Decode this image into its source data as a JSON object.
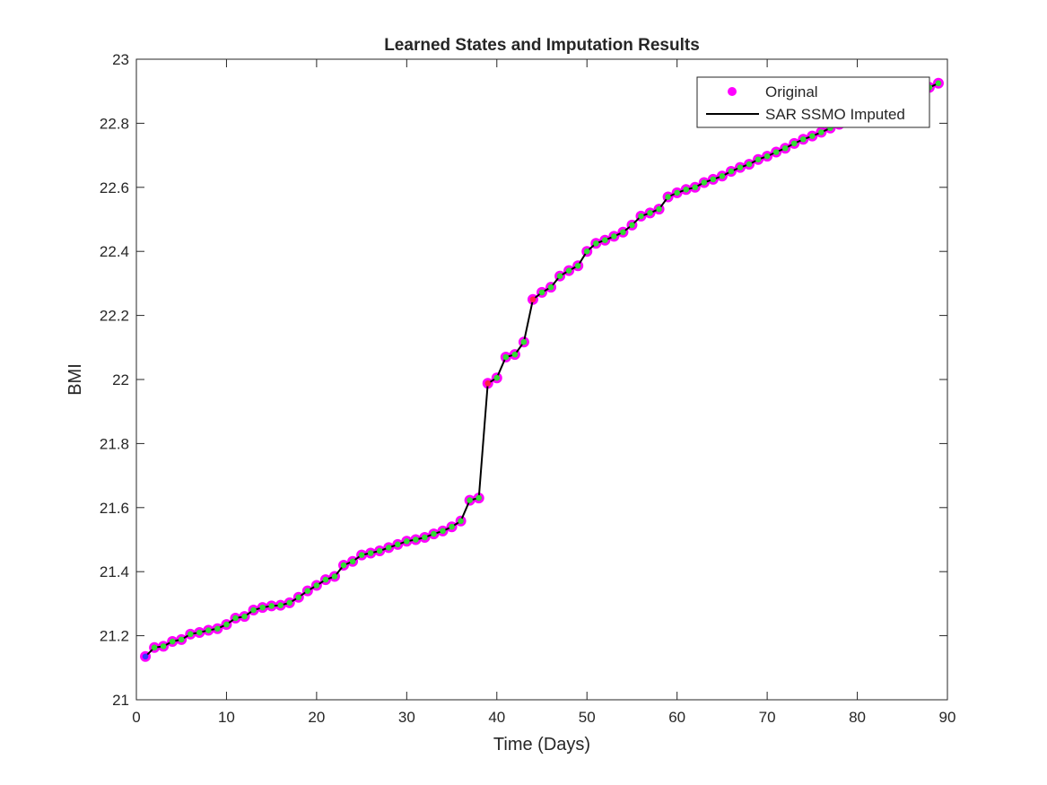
{
  "chart_data": {
    "type": "line",
    "title": "Learned States and Imputation Results",
    "xlabel": "Time (Days)",
    "ylabel": "BMI",
    "xlim": [
      0,
      90
    ],
    "ylim": [
      21,
      23
    ],
    "xticks": [
      0,
      10,
      20,
      30,
      40,
      50,
      60,
      70,
      80,
      90
    ],
    "yticks": [
      21,
      21.2,
      21.4,
      21.6,
      21.8,
      22,
      22.2,
      22.4,
      22.6,
      22.8,
      23
    ],
    "grid": false,
    "legend_position": "top-right",
    "legend": [
      {
        "label": "Original",
        "marker": "circle",
        "color": "#ff00ff"
      },
      {
        "label": "SAR SSMO Imputed",
        "marker": "line",
        "color": "#000000"
      }
    ],
    "colors": {
      "original": "#ff00ff",
      "imputed_line": "#000000",
      "state_green": "#33dd33",
      "state_blue": "#3333ff",
      "state_red": "#ff2244"
    },
    "x": [
      1,
      2,
      3,
      4,
      5,
      6,
      7,
      8,
      9,
      10,
      11,
      12,
      13,
      14,
      15,
      16,
      17,
      18,
      19,
      20,
      21,
      22,
      23,
      24,
      25,
      26,
      27,
      28,
      29,
      30,
      31,
      32,
      33,
      34,
      35,
      36,
      37,
      38,
      39,
      40,
      41,
      42,
      43,
      44,
      45,
      46,
      47,
      48,
      49,
      50,
      51,
      52,
      53,
      54,
      55,
      56,
      57,
      58,
      59,
      60,
      61,
      62,
      63,
      64,
      65,
      66,
      67,
      68,
      69,
      70,
      71,
      72,
      73,
      74,
      75,
      76,
      77,
      78,
      79,
      80,
      81,
      82,
      83,
      84,
      85,
      86,
      87,
      88,
      89
    ],
    "series": [
      {
        "name": "Original",
        "values": [
          21.135,
          21.163,
          21.167,
          21.182,
          21.188,
          21.205,
          21.21,
          21.217,
          21.222,
          21.235,
          21.255,
          21.26,
          21.28,
          21.288,
          21.293,
          21.295,
          21.303,
          21.32,
          21.34,
          21.357,
          21.375,
          21.385,
          21.42,
          21.432,
          21.452,
          21.458,
          21.465,
          21.475,
          21.485,
          21.495,
          21.5,
          21.507,
          21.518,
          21.527,
          21.54,
          21.558,
          21.623,
          21.63,
          21.988,
          22.005,
          22.07,
          22.078,
          22.117,
          22.25,
          22.272,
          22.288,
          22.323,
          22.34,
          22.355,
          22.4,
          22.425,
          22.435,
          22.447,
          22.46,
          22.482,
          22.51,
          22.52,
          22.532,
          22.57,
          22.583,
          22.593,
          22.6,
          22.615,
          22.625,
          22.635,
          22.65,
          22.662,
          22.672,
          22.687,
          22.697,
          22.71,
          22.722,
          22.737,
          22.75,
          22.76,
          22.772,
          22.785,
          22.797,
          22.807,
          22.818,
          22.83,
          22.84,
          22.852,
          22.862,
          22.875,
          22.887,
          22.9,
          22.912,
          22.925
        ]
      },
      {
        "name": "SAR SSMO Imputed",
        "values": [
          21.135,
          21.163,
          21.167,
          21.182,
          21.188,
          21.205,
          21.21,
          21.217,
          21.222,
          21.235,
          21.255,
          21.26,
          21.28,
          21.288,
          21.293,
          21.295,
          21.303,
          21.32,
          21.34,
          21.357,
          21.375,
          21.385,
          21.42,
          21.432,
          21.452,
          21.458,
          21.465,
          21.475,
          21.485,
          21.495,
          21.5,
          21.507,
          21.518,
          21.527,
          21.54,
          21.558,
          21.623,
          21.63,
          21.988,
          22.005,
          22.07,
          22.078,
          22.117,
          22.25,
          22.272,
          22.288,
          22.323,
          22.34,
          22.355,
          22.4,
          22.425,
          22.435,
          22.447,
          22.46,
          22.482,
          22.51,
          22.52,
          22.532,
          22.57,
          22.583,
          22.593,
          22.6,
          22.615,
          22.625,
          22.635,
          22.65,
          22.662,
          22.672,
          22.687,
          22.697,
          22.71,
          22.722,
          22.737,
          22.75,
          22.76,
          22.772,
          22.785,
          22.797,
          22.807,
          22.818,
          22.83,
          22.84,
          22.852,
          22.862,
          22.875,
          22.887,
          22.9,
          22.912,
          22.925
        ]
      }
    ],
    "state_markers": {
      "blue_x": [
        1
      ],
      "red_x": [
        39,
        44
      ]
    }
  }
}
